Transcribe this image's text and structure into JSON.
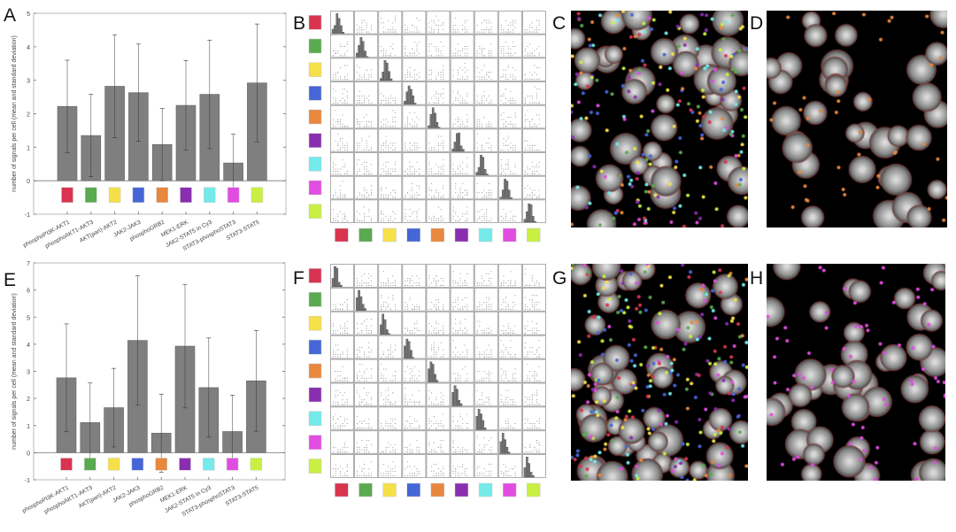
{
  "panel_letters": {
    "A": "A",
    "B": "B",
    "C": "C",
    "D": "D",
    "E": "E",
    "F": "F",
    "G": "G",
    "H": "H"
  },
  "marker_colors": [
    "#d9344f",
    "#5aaa50",
    "#f5e04a",
    "#4566d6",
    "#e8873e",
    "#8a2eb0",
    "#74eaea",
    "#e04de0",
    "#c8ef42"
  ],
  "chart_data": [
    {
      "panel": "A",
      "type": "bar",
      "categories": [
        "phosphoPI3K-AKT1",
        "phosphoAKT1-AKT3",
        "AKT(pan)-AKT2",
        "JAK2-JAK3",
        "phosphoGRB2",
        "MEK1-ERK",
        "JAK2-STAT5 in Cy3",
        "STAT3-phosphoSTAT3",
        "STAT3-STAT5"
      ],
      "values": [
        2.22,
        1.35,
        2.82,
        2.63,
        1.08,
        2.25,
        2.58,
        0.53,
        2.92
      ],
      "error_sd": [
        1.38,
        1.23,
        1.54,
        1.45,
        1.08,
        1.34,
        1.62,
        0.86,
        1.76
      ],
      "ylabel": "number of signals per cell (mean and standard deviation)",
      "ylim": [
        -1,
        5
      ],
      "yticks": [
        -1,
        0,
        1,
        2,
        3,
        4,
        5
      ],
      "bar_color": "#7f7f7f",
      "grid": false
    },
    {
      "panel": "E",
      "type": "bar",
      "categories": [
        "phosphoPI3K-AKT1",
        "phosphoAKT1-AKT3",
        "AKT(pan)-AKT2",
        "JAK2-JAK3",
        "phosphoGRB2",
        "MEK1-ERK",
        "JAK2-STAT5 in Cy3",
        "STAT3-phosphoSTAT3",
        "STAT3-STAT5"
      ],
      "values": [
        2.76,
        1.11,
        1.66,
        4.14,
        0.72,
        3.93,
        2.4,
        0.78,
        2.65
      ],
      "error_sd": [
        1.99,
        1.46,
        1.45,
        2.38,
        1.44,
        2.28,
        1.83,
        1.34,
        1.86
      ],
      "ylabel": "number of signals per cell (mean and standard deviation)",
      "ylim": [
        -1,
        7
      ],
      "yticks": [
        -1,
        0,
        1,
        2,
        3,
        4,
        5,
        6,
        7
      ],
      "bar_color": "#7f7f7f",
      "grid": false
    }
  ]
}
